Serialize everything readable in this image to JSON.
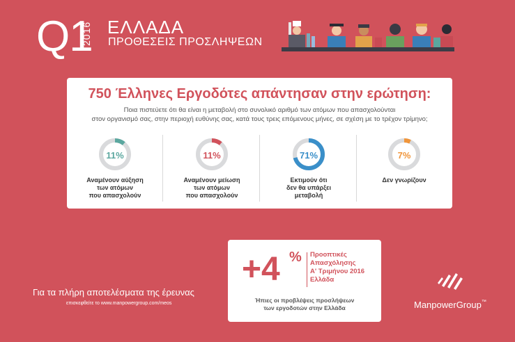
{
  "header": {
    "quarter": "Q1",
    "year": "2016",
    "country": "ΕΛΛΑΔΑ",
    "subtitle": "ΠΡΟΘΕΣΕΙΣ ΠΡΟΣΛΗΨΕΩΝ"
  },
  "survey": {
    "title": "750 Έλληνες Εργοδότες απάντησαν στην ερώτηση:",
    "question_line1": "Ποια πιστεύετε ότι θα είναι η μεταβολή στο συνολικό αριθμό των ατόμων που απασχολούνται",
    "question_line2": "στον οργανισμό σας, στην περιοχή ευθύνης σας, κατά τους τρεις επόμενους μήνες, σε σχέση με το τρέχον τρίμηνο;",
    "results": [
      {
        "value_label": "11%",
        "fraction": 0.11,
        "color": "#5ba79f",
        "label_lines": [
          "Αναμένουν αύξηση",
          "των ατόμων",
          "που απασχολούν"
        ]
      },
      {
        "value_label": "11%",
        "fraction": 0.11,
        "color": "#d1525b",
        "label_lines": [
          "Αναμένουν μείωση",
          "των ατόμων",
          "που απασχολούν"
        ]
      },
      {
        "value_label": "71%",
        "fraction": 0.71,
        "color": "#3a8fc9",
        "label_lines": [
          "Εκτιμούν ότι",
          "δεν θα υπάρξει",
          "μεταβολή"
        ]
      },
      {
        "value_label": "7%",
        "fraction": 0.07,
        "color": "#f0953a",
        "label_lines": [
          "Δεν γνωρίζουν",
          "",
          ""
        ]
      }
    ]
  },
  "footer": {
    "note": "Για τα πλήρη αποτελέσματα της έρευνας",
    "link": "επισκεφθείτε το www.manpowergroup.com/meos"
  },
  "outlook": {
    "value": "+4",
    "unit": "%",
    "title_lines": [
      "Προοπτικές",
      "Απασχόλησης",
      "Α' Τριμήνου 2016",
      "Ελλάδα"
    ],
    "note_lines": [
      "Ήπιες οι προβλέψεις προσλήψεων",
      "των εργοδοτών στην Ελλάδα"
    ]
  },
  "brand": {
    "name": "ManpowerGroup",
    "tm": "™"
  },
  "colors": {
    "background": "#d1525b",
    "track": "#d9dadc"
  }
}
